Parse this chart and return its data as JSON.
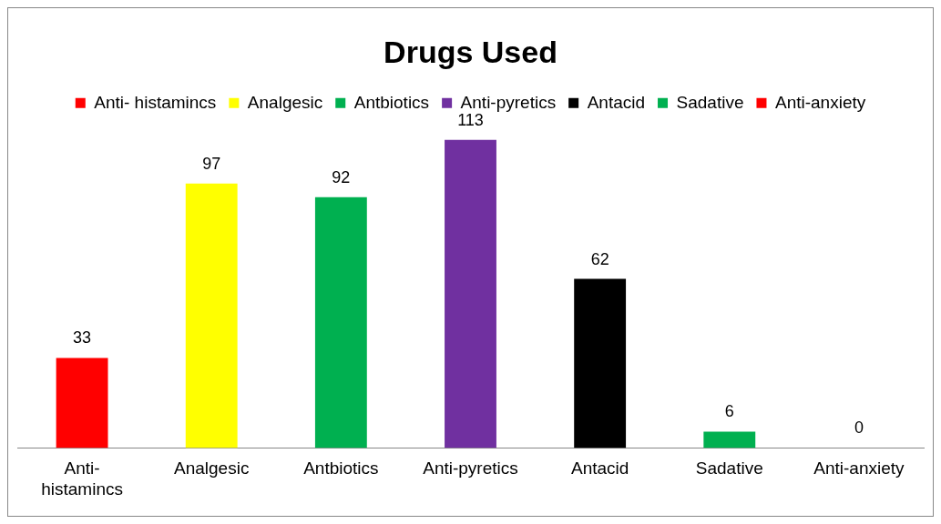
{
  "chart_data": {
    "type": "bar",
    "title": "Drugs Used",
    "categories": [
      "Anti- histamincs",
      "Analgesic",
      "Antbiotics",
      "Anti-pyretics",
      "Antacid",
      "Sadative",
      "Anti-anxiety"
    ],
    "series": [
      {
        "name": "Anti- histamincs",
        "color": "#ff0000",
        "values": [
          33,
          null,
          null,
          null,
          null,
          null,
          null
        ]
      },
      {
        "name": "Analgesic",
        "color": "#ffff00",
        "values": [
          null,
          97,
          null,
          null,
          null,
          null,
          null
        ]
      },
      {
        "name": "Antbiotics",
        "color": "#00b050",
        "values": [
          null,
          null,
          92,
          null,
          null,
          null,
          null
        ]
      },
      {
        "name": "Anti-pyretics",
        "color": "#7030a0",
        "values": [
          null,
          null,
          null,
          113,
          null,
          null,
          null
        ]
      },
      {
        "name": "Antacid",
        "color": "#000000",
        "values": [
          null,
          null,
          null,
          null,
          62,
          null,
          null
        ]
      },
      {
        "name": "Sadative",
        "color": "#00b050",
        "values": [
          null,
          null,
          null,
          null,
          null,
          6,
          null
        ]
      },
      {
        "name": "Anti-anxiety",
        "color": "#ff0000",
        "values": [
          null,
          null,
          null,
          null,
          null,
          null,
          0
        ]
      }
    ],
    "data_labels": true,
    "legend": "top",
    "grid": false
  }
}
